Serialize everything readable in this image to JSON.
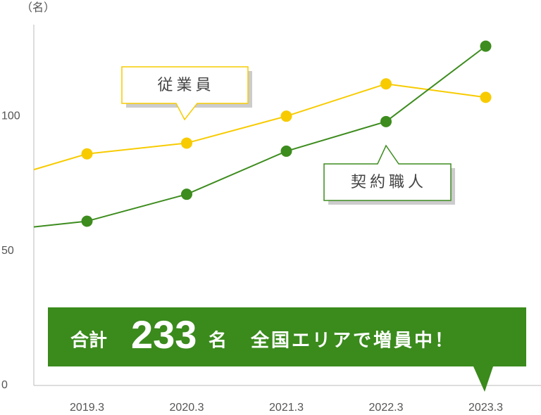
{
  "chart_data": {
    "type": "line",
    "unit_label": "（名）",
    "categories": [
      null,
      "2019.3",
      "2020.3",
      "2021.3",
      "2022.3",
      "2023.3"
    ],
    "series": [
      {
        "name": "従業員",
        "color": "#f7cb00",
        "values": [
          75,
          86,
          90,
          100,
          112,
          107
        ]
      },
      {
        "name": "契約職人",
        "color": "#3d8c1e",
        "values": [
          57,
          61,
          71,
          87,
          98,
          126
        ]
      }
    ],
    "ylim": [
      0,
      134
    ],
    "yticks": [
      0,
      50,
      100
    ],
    "banner": {
      "prefix": "合計",
      "number": "233",
      "unit": "名",
      "message": "全国エリアで増員中！"
    }
  }
}
